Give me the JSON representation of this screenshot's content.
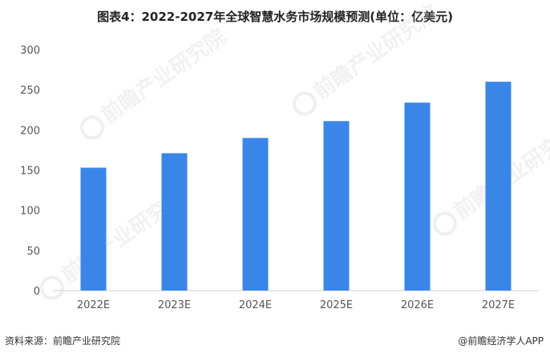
{
  "title": "图表4：2022-2027年全球智慧水务市场规模预测(单位：亿美元)",
  "footer": {
    "source": "资料来源：前瞻产业研究院",
    "brand": "@前瞻经济学人APP"
  },
  "watermark": {
    "text": "前瞻产业研究院"
  },
  "colors": {
    "bar": "#3a86e8",
    "axis": "#cccccc",
    "tick_text": "#555555"
  },
  "chart_data": {
    "type": "bar",
    "title": "图表4：2022-2027年全球智慧水务市场规模预测(单位：亿美元)",
    "xlabel": "",
    "ylabel": "",
    "categories": [
      "2022E",
      "2023E",
      "2024E",
      "2025E",
      "2026E",
      "2027E"
    ],
    "values": [
      153,
      171,
      190,
      211,
      234,
      260
    ],
    "ylim": [
      0,
      300
    ],
    "yticks": [
      0,
      50,
      100,
      150,
      200,
      250,
      300
    ],
    "grid": false,
    "legend": "none"
  }
}
